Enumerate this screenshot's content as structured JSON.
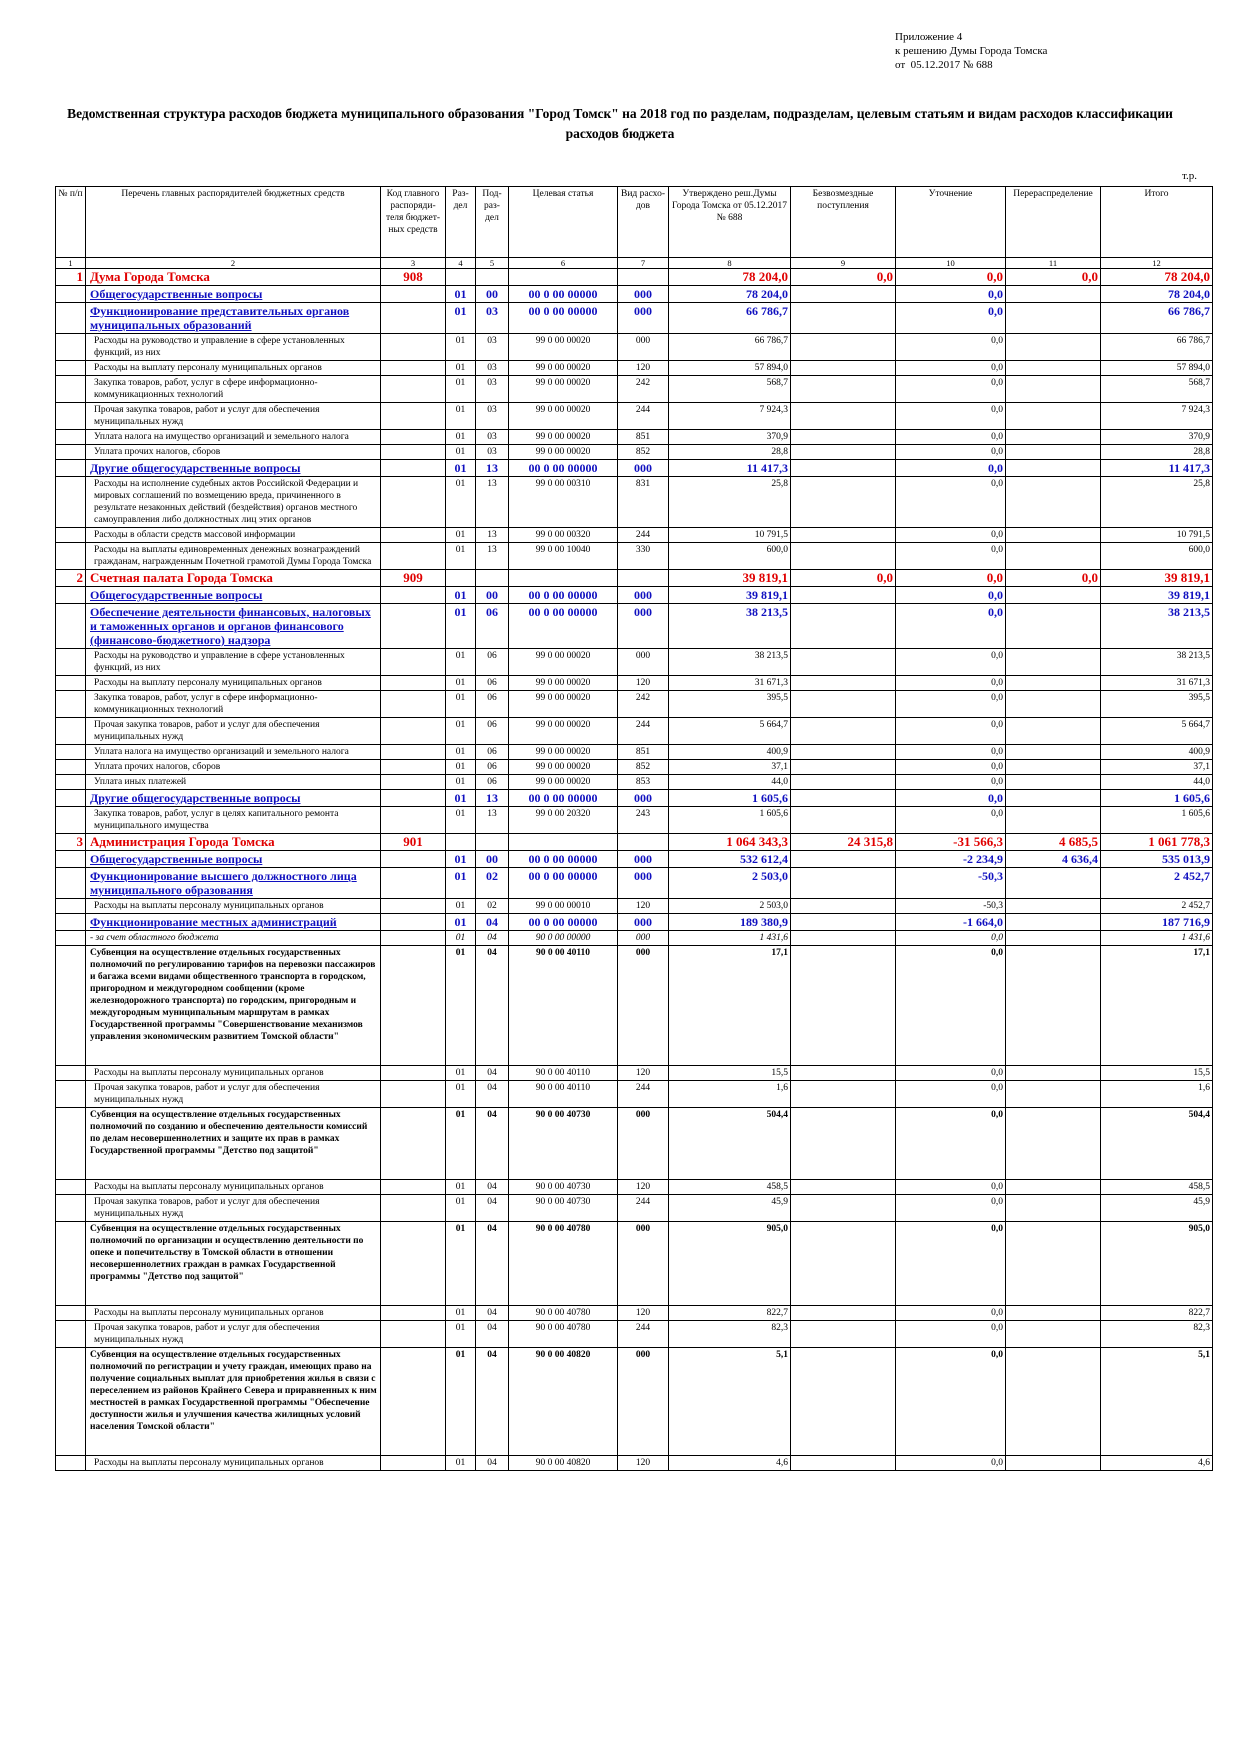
{
  "header": {
    "appendix": [
      "Приложение 4",
      "к решению Думы Города Томска",
      "от  05.12.2017 № 688"
    ],
    "title": "Ведомственная структура расходов бюджета муниципального образования \"Город Томск\" на 2018 год по разделам, подразделам, целевым статьям и видам расходов классификации расходов бюджета",
    "unit": "т.р."
  },
  "table": {
    "columns": [
      "№ п/п",
      "Перечень главных распорядителей бюджетных средств",
      "Код главного распоряди-теля бюджет-ных средств",
      "Раз-дел",
      "Под-раз-дел",
      "Целевая статья",
      "Вид расхо-дов",
      "Утверждено реш.Думы Города Томска от 05.12.2017 № 688",
      "Безвозмездные поступления",
      "Уточнение",
      "Перераспределение",
      "Итого"
    ],
    "column_numbers": [
      1,
      2,
      3,
      4,
      5,
      6,
      7,
      8,
      9,
      10,
      11,
      12
    ],
    "rows": [
      [
        "1",
        "Дума Города Томска",
        "908",
        null,
        null,
        null,
        null,
        "78 204,0",
        "0,0",
        "0,0",
        "0,0",
        "78 204,0"
      ],
      [
        null,
        "Общегосударственные вопросы",
        null,
        "01",
        "00",
        "00 0 00 00000",
        "000",
        "78 204,0",
        null,
        "0,0",
        null,
        "78 204,0"
      ],
      [
        null,
        "Функционирование представительных органов муниципальных образований",
        null,
        "01",
        "03",
        "00 0 00 00000",
        "000",
        "66 786,7",
        null,
        "0,0",
        null,
        "66 786,7"
      ],
      [
        null,
        "Расходы на руководство и управление в сфере установленных функций, из них",
        null,
        "01",
        "03",
        "99 0 00 00020",
        "000",
        "66 786,7",
        null,
        "0,0",
        null,
        "66 786,7"
      ],
      [
        null,
        "Расходы на выплату персоналу муниципальных органов",
        null,
        "01",
        "03",
        "99 0 00 00020",
        "120",
        "57 894,0",
        null,
        "0,0",
        null,
        "57 894,0"
      ],
      [
        null,
        "Закупка товаров, работ, услуг в сфере информационно-коммуникационных технологий",
        null,
        "01",
        "03",
        "99 0 00 00020",
        "242",
        "568,7",
        null,
        "0,0",
        null,
        "568,7"
      ],
      [
        null,
        "Прочая закупка товаров, работ и услуг для обеспечения муниципальных нужд",
        null,
        "01",
        "03",
        "99 0 00 00020",
        "244",
        "7 924,3",
        null,
        "0,0",
        null,
        "7 924,3"
      ],
      [
        null,
        "Уплата налога на имущество организаций и земельного налога",
        null,
        "01",
        "03",
        "99 0 00 00020",
        "851",
        "370,9",
        null,
        "0,0",
        null,
        "370,9"
      ],
      [
        null,
        "Уплата прочих налогов, сборов",
        null,
        "01",
        "03",
        "99 0 00 00020",
        "852",
        "28,8",
        null,
        "0,0",
        null,
        "28,8"
      ],
      [
        null,
        "Другие общегосударственные вопросы",
        null,
        "01",
        "13",
        "00 0 00 00000",
        "000",
        "11 417,3",
        null,
        "0,0",
        null,
        "11 417,3"
      ],
      [
        null,
        "Расходы на исполнение судебных актов Российской Федерации и мировых соглашений по возмещению вреда, причиненного в результате незаконных действий (бездействия) органов местного самоуправления либо должностных лиц этих органов",
        null,
        "01",
        "13",
        "99 0 00 00310",
        "831",
        "25,8",
        null,
        "0,0",
        null,
        "25,8"
      ],
      [
        null,
        "Расходы в области средств массовой информации",
        null,
        "01",
        "13",
        "99 0 00 00320",
        "244",
        "10 791,5",
        null,
        "0,0",
        null,
        "10 791,5"
      ],
      [
        null,
        "Расходы на выплаты единовременных денежных вознаграждений гражданам, награжденным Почетной грамотой Думы Города Томска",
        null,
        "01",
        "13",
        "99 0 00 10040",
        "330",
        "600,0",
        null,
        "0,0",
        null,
        "600,0"
      ],
      [
        "2",
        "Счетная палата Города Томска",
        "909",
        null,
        null,
        null,
        null,
        "39 819,1",
        "0,0",
        "0,0",
        "0,0",
        "39 819,1"
      ],
      [
        null,
        "Общегосударственные вопросы",
        null,
        "01",
        "00",
        "00 0 00 00000",
        "000",
        "39 819,1",
        null,
        "0,0",
        null,
        "39 819,1"
      ],
      [
        null,
        "Обеспечение деятельности финансовых, налоговых и таможенных органов и органов финансового (финансово-бюджетного) надзора",
        null,
        "01",
        "06",
        "00 0 00 00000",
        "000",
        "38 213,5",
        null,
        "0,0",
        null,
        "38 213,5"
      ],
      [
        null,
        "Расходы на руководство и управление в сфере установленных функций, из них",
        null,
        "01",
        "06",
        "99 0 00 00020",
        "000",
        "38 213,5",
        null,
        "0,0",
        null,
        "38 213,5"
      ],
      [
        null,
        "Расходы на выплату персоналу муниципальных органов",
        null,
        "01",
        "06",
        "99 0 00 00020",
        "120",
        "31 671,3",
        null,
        "0,0",
        null,
        "31 671,3"
      ],
      [
        null,
        "Закупка товаров, работ, услуг в сфере информационно-коммуникационных технологий",
        null,
        "01",
        "06",
        "99 0 00 00020",
        "242",
        "395,5",
        null,
        "0,0",
        null,
        "395,5"
      ],
      [
        null,
        "Прочая закупка товаров, работ и услуг для обеспечения муниципальных нужд",
        null,
        "01",
        "06",
        "99 0 00 00020",
        "244",
        "5 664,7",
        null,
        "0,0",
        null,
        "5 664,7"
      ],
      [
        null,
        "Уплата налога на имущество организаций и земельного налога",
        null,
        "01",
        "06",
        "99 0 00 00020",
        "851",
        "400,9",
        null,
        "0,0",
        null,
        "400,9"
      ],
      [
        null,
        "Уплата прочих налогов, сборов",
        null,
        "01",
        "06",
        "99 0 00 00020",
        "852",
        "37,1",
        null,
        "0,0",
        null,
        "37,1"
      ],
      [
        null,
        "Уплата иных платежей",
        null,
        "01",
        "06",
        "99 0 00 00020",
        "853",
        "44,0",
        null,
        "0,0",
        null,
        "44,0"
      ],
      [
        null,
        "Другие общегосударственные вопросы",
        null,
        "01",
        "13",
        "00 0 00 00000",
        "000",
        "1 605,6",
        null,
        "0,0",
        null,
        "1 605,6"
      ],
      [
        null,
        "Закупка товаров, работ, услуг в целях капитального ремонта муниципального имущества",
        null,
        "01",
        "13",
        "99 0 00 20320",
        "243",
        "1 605,6",
        null,
        "0,0",
        null,
        "1 605,6"
      ],
      [
        "3",
        "Администрация Города Томска",
        "901",
        null,
        null,
        null,
        null,
        "1 064 343,3",
        "24 315,8",
        "-31 566,3",
        "4 685,5",
        "1 061 778,3"
      ],
      [
        null,
        "Общегосударственные вопросы",
        null,
        "01",
        "00",
        "00 0 00 00000",
        "000",
        "532 612,4",
        null,
        "-2 234,9",
        "4 636,4",
        "535 013,9"
      ],
      [
        null,
        "Функционирование высшего должностного лица муниципального образования",
        null,
        "01",
        "02",
        "00 0 00 00000",
        "000",
        "2 503,0",
        null,
        "-50,3",
        null,
        "2 452,7"
      ],
      [
        null,
        "Расходы на выплаты персоналу муниципальных органов",
        null,
        "01",
        "02",
        "99 0 00 00010",
        "120",
        "2 503,0",
        null,
        "-50,3",
        null,
        "2 452,7"
      ],
      [
        null,
        "Функционирование местных администраций",
        null,
        "01",
        "04",
        "00 0 00 00000",
        "000",
        "189 380,9",
        null,
        "-1 664,0",
        null,
        "187 716,9"
      ],
      [
        null,
        "- за счет областного бюджета",
        null,
        "01",
        "04",
        "90 0 00 00000",
        "000",
        "1 431,6",
        null,
        "0,0",
        null,
        "1 431,6"
      ],
      [
        null,
        "Субвенция на осуществление отдельных государственных полномочий по регулированию тарифов на перевозки пассажиров и багажа всеми видами общественного транспорта в городском, пригородном и междугородном сообщении (кроме железнодорожного транспорта) по городским, пригородным и междугородным муниципальным маршрутам в рамках Государственной программы \"Совершенствование механизмов управления экономическим развитием Томской области\"",
        null,
        "01",
        "04",
        "90 0 00 40110",
        "000",
        "17,1",
        null,
        "0,0",
        null,
        "17,1"
      ],
      [
        null,
        "Расходы на выплаты персоналу муниципальных органов",
        null,
        "01",
        "04",
        "90 0 00 40110",
        "120",
        "15,5",
        null,
        "0,0",
        null,
        "15,5"
      ],
      [
        null,
        "Прочая закупка товаров, работ и услуг для обеспечения муниципальных нужд",
        null,
        "01",
        "04",
        "90 0 00 40110",
        "244",
        "1,6",
        null,
        "0,0",
        null,
        "1,6"
      ],
      [
        null,
        "Субвенция на осуществление отдельных государственных полномочий по созданию и обеспечению деятельности комиссий по делам несовершеннолетних и защите их прав в рамках Государственной программы \"Детство под защитой\"",
        null,
        "01",
        "04",
        "90 0 00 40730",
        "000",
        "504,4",
        null,
        "0,0",
        null,
        "504,4"
      ],
      [
        null,
        "Расходы на выплаты персоналу муниципальных органов",
        null,
        "01",
        "04",
        "90 0 00 40730",
        "120",
        "458,5",
        null,
        "0,0",
        null,
        "458,5"
      ],
      [
        null,
        "Прочая закупка товаров, работ и услуг для обеспечения муниципальных нужд",
        null,
        "01",
        "04",
        "90 0 00 40730",
        "244",
        "45,9",
        null,
        "0,0",
        null,
        "45,9"
      ],
      [
        null,
        "Субвенция на осуществление отдельных государственных полномочий по организации и осуществлению деятельности по опеке и попечительству в Томской области в отношении несовершеннолетних граждан в рамках Государственной программы \"Детство под защитой\"",
        null,
        "01",
        "04",
        "90 0 00 40780",
        "000",
        "905,0",
        null,
        "0,0",
        null,
        "905,0"
      ],
      [
        null,
        "Расходы на выплаты персоналу муниципальных органов",
        null,
        "01",
        "04",
        "90 0 00 40780",
        "120",
        "822,7",
        null,
        "0,0",
        null,
        "822,7"
      ],
      [
        null,
        "Прочая закупка товаров, работ и услуг для обеспечения муниципальных нужд",
        null,
        "01",
        "04",
        "90 0 00 40780",
        "244",
        "82,3",
        null,
        "0,0",
        null,
        "82,3"
      ],
      [
        null,
        "Субвенция на осуществление отдельных государственных полномочий по регистрации и учету граждан, имеющих право на получение социальных выплат для приобретения жилья в связи с переселением из районов Крайнего Севера и приравненных к ним местностей в рамках Государственной программы \"Обеспечение доступности жилья и улучшения качества жилищных условий населения Томской области\"",
        null,
        "01",
        "04",
        "90 0 00 40820",
        "000",
        "5,1",
        null,
        "0,0",
        null,
        "5,1"
      ],
      [
        null,
        "Расходы на выплаты персоналу муниципальных органов",
        null,
        "01",
        "04",
        "90 0 00 40820",
        "120",
        "4,6",
        null,
        "0,0",
        null,
        "4,6"
      ]
    ]
  }
}
